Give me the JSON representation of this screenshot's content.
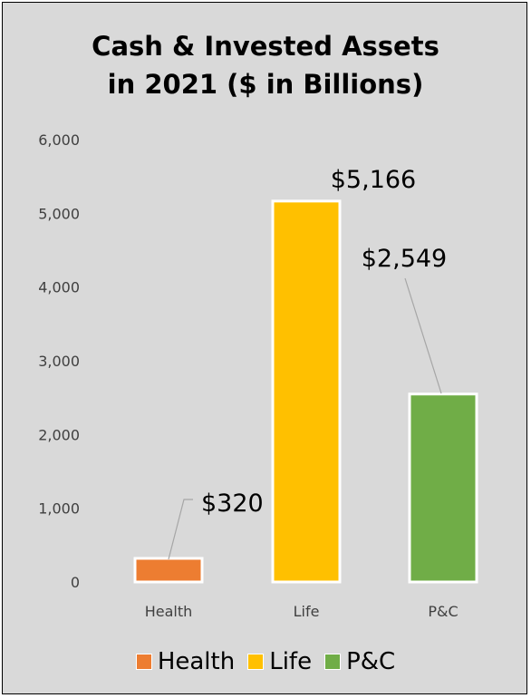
{
  "chart_data": {
    "type": "bar",
    "title_lines": [
      "Cash & Invested Assets",
      "in 2021 ($ in Billions)"
    ],
    "categories": [
      "Health",
      "Life",
      "P&C"
    ],
    "values": [
      320,
      5166,
      2549
    ],
    "data_labels": [
      "$320",
      "$5,166",
      "$2,549"
    ],
    "colors": [
      "#ed7d31",
      "#ffc000",
      "#70ad47"
    ],
    "ylim": [
      0,
      6000
    ],
    "yticks": [
      "0",
      "1,000",
      "2,000",
      "3,000",
      "4,000",
      "5,000",
      "6,000"
    ],
    "ytick_values": [
      0,
      1000,
      2000,
      3000,
      4000,
      5000,
      6000
    ],
    "grid": false,
    "legend_position": "bottom",
    "legend": [
      "Health",
      "Life",
      "P&C"
    ]
  }
}
